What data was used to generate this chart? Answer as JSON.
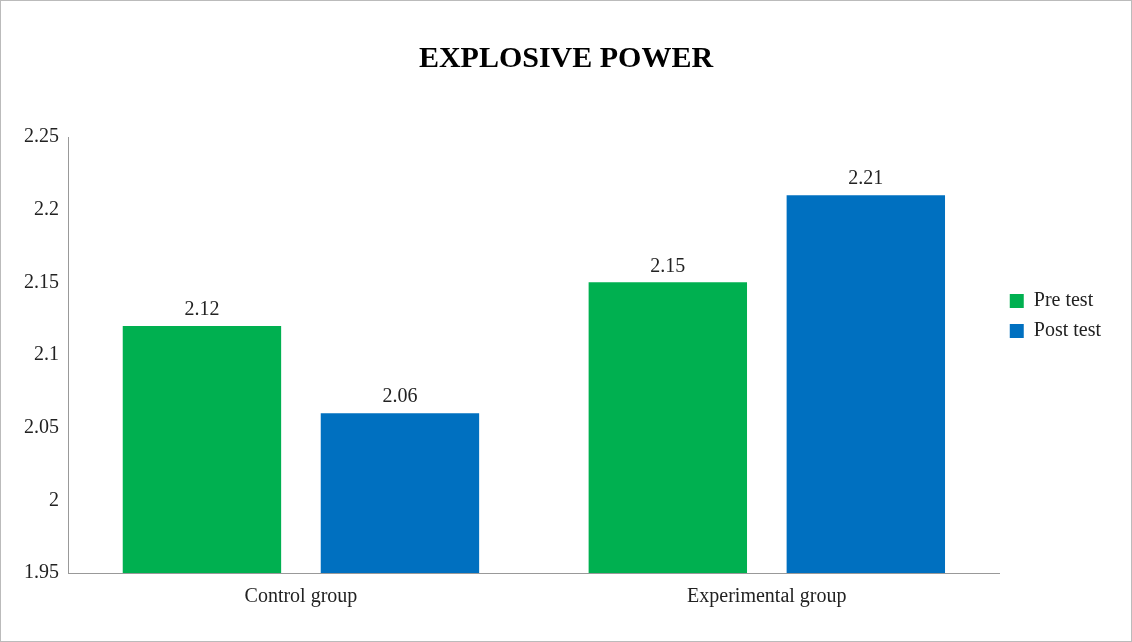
{
  "chart_data": {
    "type": "bar",
    "title": "EXPLOSIVE POWER",
    "categories": [
      "Control group",
      "Experimental group"
    ],
    "series": [
      {
        "name": "Pre test",
        "color": "#00b050",
        "values": [
          2.12,
          2.15
        ]
      },
      {
        "name": "Post test",
        "color": "#0070c0",
        "values": [
          2.06,
          2.21
        ]
      }
    ],
    "ylim": [
      1.95,
      2.25
    ],
    "yticks": [
      1.95,
      2,
      2.05,
      2.1,
      2.15,
      2.2,
      2.25
    ],
    "grid": false,
    "legend": "right",
    "data_labels": true
  }
}
